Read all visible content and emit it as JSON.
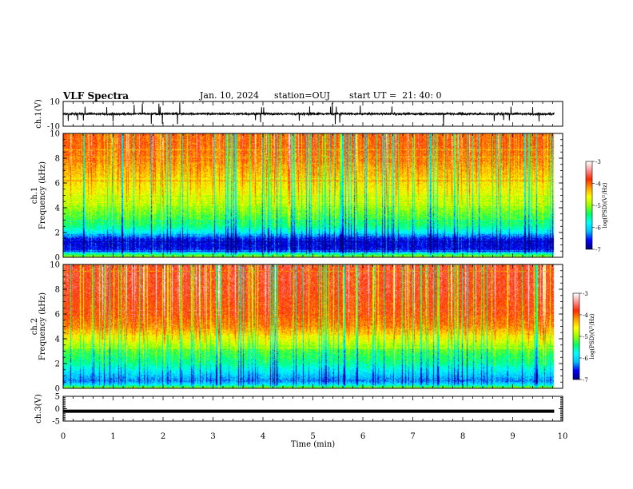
{
  "header": {
    "title": "VLF Spectra",
    "date": "Jan. 10, 2024",
    "station": "station=OUJ",
    "start": "start UT =  21: 40: 0"
  },
  "colors": {
    "background": "#ffffff",
    "axis": "#000000",
    "waveform": "#000000",
    "colormap": [
      "#000080",
      "#0000ff",
      "#00bfff",
      "#00ffff",
      "#00ff66",
      "#9aff00",
      "#ffff00",
      "#ffa000",
      "#ff2a00",
      "#ff9090",
      "#ffffff"
    ]
  },
  "chart_data": [
    {
      "type": "line",
      "panel": "ch1-waveform",
      "ylabel": "ch.1(V)",
      "yticks": [
        "10",
        "-10"
      ],
      "ylim": [
        -10,
        10
      ],
      "xlim": [
        0,
        10
      ],
      "x_data_end": 9.83,
      "baseline": 0,
      "noise_amplitude": 1.5,
      "spike_amplitude": 8,
      "grid": false
    },
    {
      "type": "heatmap",
      "panel": "ch1-spectrogram",
      "ylabel": "ch.1\nFrequency (kHz)",
      "yticks": [
        "0",
        "2",
        "4",
        "6",
        "8",
        "10"
      ],
      "ylim": [
        0,
        10
      ],
      "xlim": [
        0,
        10
      ],
      "x_data_end": 9.83,
      "zlabel": "log(PSD)(V²/Hz)",
      "zticks": [
        "-3",
        "-4",
        "-5",
        "-6",
        "-7"
      ],
      "zlim": [
        -7,
        -3
      ],
      "log_psd_profile": {
        "freq_khz": [
          0,
          0.3,
          0.5,
          1.0,
          1.5,
          2.0,
          2.5,
          3.0,
          4.0,
          5.0,
          6.0,
          7.0,
          8.0,
          9.0,
          10.0
        ],
        "value": [
          -4.8,
          -5.6,
          -6.6,
          -6.7,
          -6.6,
          -5.9,
          -5.5,
          -5.3,
          -5.0,
          -4.7,
          -4.5,
          -4.3,
          -4.1,
          -4.0,
          -4.0
        ]
      },
      "grid": false
    },
    {
      "type": "heatmap",
      "panel": "ch2-spectrogram",
      "ylabel": "ch.2\nFrequency (kHz)",
      "yticks": [
        "0",
        "2",
        "4",
        "6",
        "8",
        "10"
      ],
      "ylim": [
        0,
        10
      ],
      "xlim": [
        0,
        10
      ],
      "x_data_end": 9.83,
      "zlabel": "log(PSD)(V²/Hz)",
      "zticks": [
        "-3",
        "-4",
        "-5",
        "-6",
        "-7"
      ],
      "zlim": [
        -7,
        -3
      ],
      "log_psd_profile": {
        "freq_khz": [
          0,
          0.3,
          0.6,
          1.0,
          1.5,
          2.0,
          3.0,
          4.0,
          5.0,
          6.0,
          7.0,
          8.0,
          9.0,
          10.0
        ],
        "value": [
          -4.8,
          -5.9,
          -6.3,
          -6.1,
          -5.8,
          -5.5,
          -5.2,
          -4.6,
          -4.1,
          -3.9,
          -3.8,
          -3.7,
          -3.7,
          -3.7
        ]
      },
      "grid": false
    },
    {
      "type": "line",
      "panel": "ch3-waveform",
      "ylabel": "ch.3(V)",
      "yticks": [
        "5",
        "0",
        "-5"
      ],
      "ylim": [
        -5,
        5
      ],
      "xlim": [
        0,
        10
      ],
      "x_data_end": 9.83,
      "baseline": -1,
      "xlabel": "Time (min)",
      "xticks": [
        "0",
        "1",
        "2",
        "3",
        "4",
        "5",
        "6",
        "7",
        "8",
        "9",
        "10"
      ],
      "grid": false
    }
  ]
}
